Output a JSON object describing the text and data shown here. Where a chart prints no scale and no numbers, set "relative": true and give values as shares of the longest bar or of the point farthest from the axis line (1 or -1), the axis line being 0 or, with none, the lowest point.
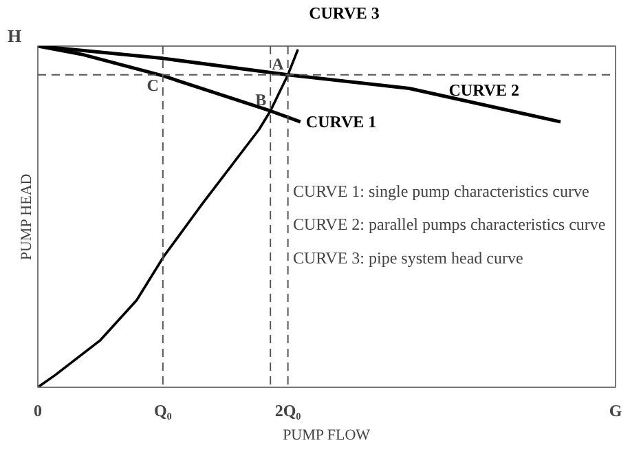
{
  "chart_data": {
    "type": "line",
    "xlabel": "PUMP FLOW",
    "ylabel": "PUMP HEAD",
    "xlim": [
      0,
      4.62
    ],
    "relative": true,
    "xticks": [
      {
        "value": 0,
        "label": "0"
      },
      {
        "value": 1,
        "label": "Q₀"
      },
      {
        "value": 2,
        "label": "2Q₀"
      },
      {
        "value": 4.62,
        "label": "G"
      }
    ],
    "series": [
      {
        "name": "CURVE 1",
        "color": "#000000",
        "x": [
          0,
          0.36,
          1,
          1.86,
          2.1
        ],
        "values": [
          1,
          0.975,
          0.913,
          0.81,
          0.778
        ]
      },
      {
        "name": "CURVE 2",
        "color": "#000000",
        "x": [
          0,
          1,
          2,
          2.97,
          4.18
        ],
        "values": [
          1,
          0.964,
          0.916,
          0.876,
          0.778
        ]
      },
      {
        "name": "CURVE 3",
        "color": "#000000",
        "x": [
          0,
          0.14,
          0.5,
          0.79,
          1.01,
          1.26,
          1.32,
          1.77,
          1.86,
          2,
          2.08
        ],
        "values": [
          0,
          0.036,
          0.138,
          0.255,
          0.385,
          0.51,
          0.54,
          0.756,
          0.81,
          0.916,
          0.99
        ]
      }
    ],
    "ref_lines": [
      {
        "axis": "x",
        "value": 1,
        "line_style": "dashed",
        "color": "#555555"
      },
      {
        "axis": "x",
        "value": 1.86,
        "line_style": "dashed",
        "color": "#555555"
      },
      {
        "axis": "x",
        "value": 2,
        "line_style": "dashed",
        "color": "#555555"
      },
      {
        "axis": "y",
        "value": 0.916,
        "line_style": "dashed",
        "color": "#555555"
      }
    ],
    "annotations": [
      "H",
      {
        "text": "A",
        "x": 2,
        "y": 0.916
      },
      {
        "text": "B",
        "x": 1.86,
        "y": 0.81
      },
      {
        "text": "C",
        "x": 1,
        "y": 0.913
      },
      "CURVE 1:  single pump characteristics curve",
      "CURVE 2:  parallel pumps characteristics curve",
      "CURVE 3:  pipe system head curve"
    ],
    "grid": false,
    "marker": "none",
    "line_style": "solid"
  }
}
